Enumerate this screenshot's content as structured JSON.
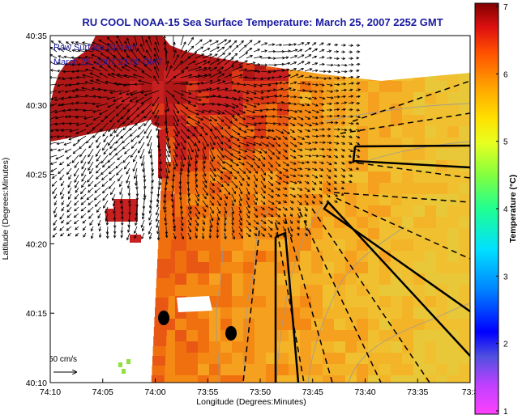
{
  "title": "RU COOL  NOAA-15  Sea Surface Temperature:  March 25, 2007 2252 GMT",
  "legend": {
    "line1": "Raw Surface Current",
    "line2": "March 25, 2007 23:00 GMT"
  },
  "scale_label": "50 cm/s",
  "x_axis": {
    "label": "Longitude (Degrees:Minutes)",
    "ticks": [
      "74:10",
      "74:05",
      "74:00",
      "73:55",
      "73:50",
      "73:45",
      "73:40",
      "73:35",
      "73:3"
    ]
  },
  "y_axis": {
    "label": "Latitude (Degrees:Minutes)",
    "ticks": [
      "40:35",
      "40:30",
      "40:25",
      "40:20",
      "40:15",
      "40:10"
    ]
  },
  "colorbar": {
    "label": "Temperature (°C)",
    "ticks": [
      "7",
      "6",
      "5",
      "4",
      "3",
      "2",
      "1"
    ],
    "min": 1,
    "max": 7
  },
  "colors": {
    "title": "#1a1aa0",
    "land": "#ffffff",
    "sst_warm": "#c81e1e",
    "sst_mid": "#f07a10",
    "sst_cool": "#f4b820"
  }
}
